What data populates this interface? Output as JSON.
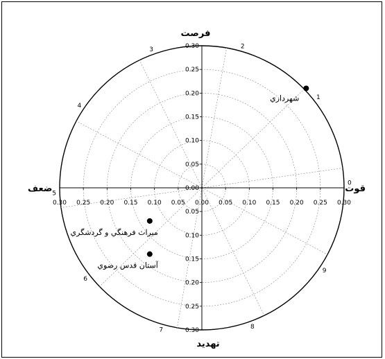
{
  "chart_data": {
    "type": "scatter",
    "subtype": "polar-quadrant",
    "axis_range": [
      0,
      0.3
    ],
    "ring_values": [
      0.05,
      0.1,
      0.15,
      0.2,
      0.25,
      0.3
    ],
    "y_ticks": [
      "0.30",
      "0.25",
      "0.20",
      "0.15",
      "0.10",
      "0.05",
      "0.00",
      "0.05",
      "0.10",
      "0.15",
      "0.20",
      "0.25",
      "0.30"
    ],
    "x_ticks": [
      "0.30",
      "0.25",
      "0.20",
      "0.15",
      "0.10",
      "0.05",
      "0.00",
      "0.05",
      "0.10",
      "0.15",
      "0.20",
      "0.25",
      "0.30"
    ],
    "spoke_labels": [
      "0",
      "1",
      "2",
      "3",
      "4",
      "5",
      "6",
      "7",
      "8",
      "9"
    ],
    "directions": {
      "top": "فرصت",
      "bottom": "تهديد",
      "left": "ضعف",
      "right": "قوت"
    },
    "points": [
      {
        "label": "شهرداري",
        "x": 0.22,
        "y": 0.21
      },
      {
        "label": "ميراث فرهنگي و گردشگري",
        "x": -0.11,
        "y": -0.07
      },
      {
        "label": "آستان قدس رضوي",
        "x": -0.11,
        "y": -0.14
      }
    ],
    "grid": true
  }
}
